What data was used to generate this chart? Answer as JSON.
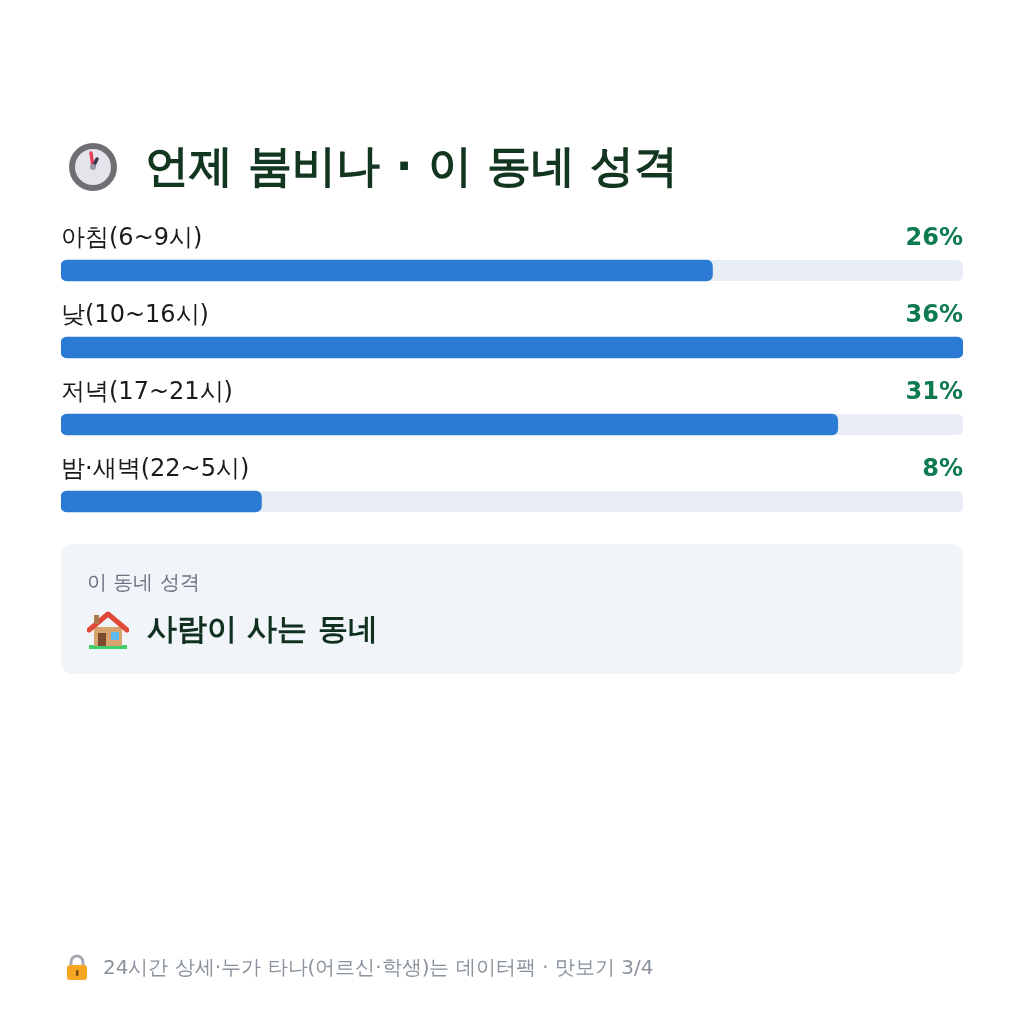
{
  "chart_data": {
    "type": "bar",
    "orientation": "horizontal",
    "title": "언제 붐비나 · 이 동네 성격",
    "categories": [
      "아침(6~9시)",
      "낮(10~16시)",
      "저녁(17~21시)",
      "밤·새벽(22~5시)"
    ],
    "values": [
      26,
      36,
      31,
      8
    ],
    "value_labels": [
      "26%",
      "36%",
      "31%",
      "8%"
    ],
    "color": "#2b7bd4",
    "annotations": [
      "이 동네 성격",
      "사람이 사는 동네",
      "24시간 상세·누가 타나(어르신·학생)는 데이터팩 · 맛보기 3/4"
    ]
  }
}
